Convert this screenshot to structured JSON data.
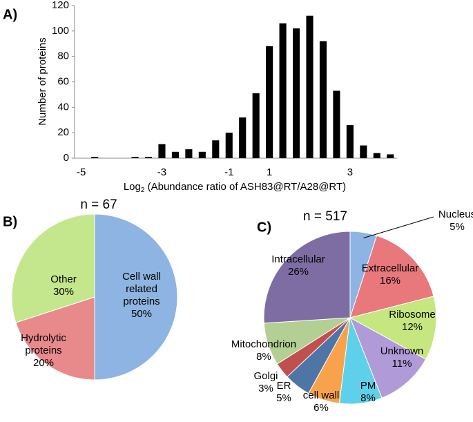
{
  "chart_data": [
    {
      "type": "bar",
      "panel": "A)",
      "y_label": "Number of proteins",
      "x_label": {
        "base": "Log",
        "sub": "2",
        "rest": " (Abundance ratio of ASH83@RT/A28@RT)"
      },
      "categories": [
        "-5",
        null,
        null,
        null,
        null,
        null,
        "-3",
        null,
        null,
        null,
        null,
        "-1",
        null,
        null,
        "1",
        null,
        null,
        null,
        null,
        null,
        "3",
        null,
        null,
        null
      ],
      "values": [
        0,
        1,
        0,
        0,
        1,
        1,
        11,
        5,
        7,
        5,
        14,
        20,
        32,
        51,
        88,
        106,
        102,
        112,
        92,
        53,
        26,
        10,
        4,
        3
      ],
      "color": "#000000",
      "ylim": [
        0,
        120
      ],
      "yticks": [
        0,
        20,
        40,
        60,
        80,
        100,
        120
      ]
    },
    {
      "type": "pie",
      "panel": "B)",
      "title": "n = 67",
      "categories": [
        "Cell wall related proteins",
        "Hydrolytic proteins",
        "Other"
      ],
      "values": [
        50,
        20,
        30
      ],
      "value_labels": [
        "50%",
        "20%",
        "30%"
      ],
      "colors": [
        "#8db4e2",
        "#e8898b",
        "#c4e68c"
      ]
    },
    {
      "type": "pie",
      "panel": "C)",
      "title": "n = 517",
      "categories": [
        "Nucleus",
        "Extracellular",
        "Ribosome",
        "Unknown",
        "PM",
        "cell wall",
        "ER",
        "Golgi",
        "Mitochondrion",
        "Intracellular"
      ],
      "values": [
        5,
        16,
        12,
        11,
        8,
        6,
        5,
        3,
        8,
        26
      ],
      "value_labels": [
        "5%",
        "16%",
        "12%",
        "11%",
        "8%",
        "6%",
        "5%",
        "3%",
        "8%",
        "26%"
      ],
      "colors": [
        "#8db4e2",
        "#e8787b",
        "#c6e680",
        "#b19ad8",
        "#5fd0ea",
        "#f9a24c",
        "#4f75a6",
        "#c0504d",
        "#b3cf93",
        "#7d6da3"
      ]
    }
  ]
}
